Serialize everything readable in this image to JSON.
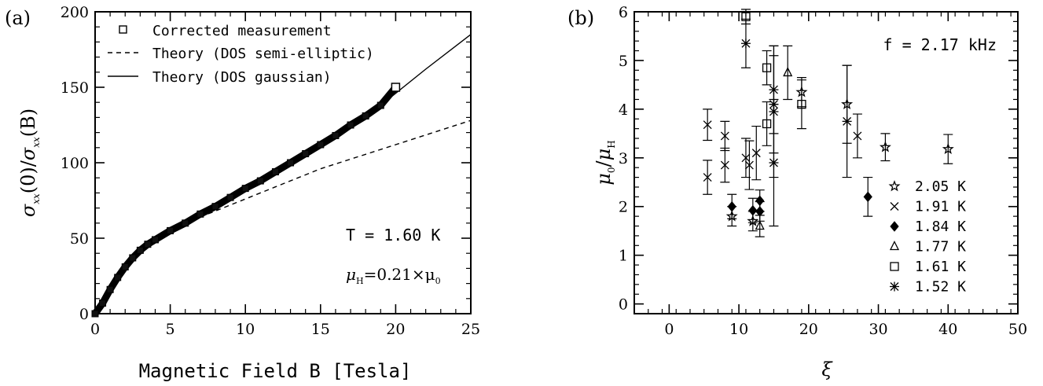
{
  "chart_data": [
    {
      "panel_label": "(a)",
      "type": "line",
      "xlabel": "Magnetic Field B [Tesla]",
      "ylabel": "σxx(0)/σxx(B)",
      "xlim": [
        0,
        25
      ],
      "ylim": [
        0,
        200
      ],
      "xticks": [
        "0",
        "5",
        "10",
        "15",
        "20",
        "25"
      ],
      "yticks": [
        "0",
        "50",
        "100",
        "150",
        "200"
      ],
      "legend_position": "top-left",
      "annotations": [
        "T = 1.60 K",
        "μH=0.21×μ0"
      ],
      "annotation_parts": {
        "temp": "T = 1.60 K",
        "mu_h": "μ",
        "mu_h_sub": "H",
        "mu_rest": "=0.21×μ",
        "mu_sub0": "0"
      },
      "series": [
        {
          "name": "Corrected measurement",
          "style": "open-square markers",
          "x": [
            0.0,
            0.5,
            1.0,
            1.5,
            2.0,
            2.5,
            3.0,
            3.5,
            4.0,
            5.0,
            6.0,
            7.0,
            8.0,
            9.0,
            10.0,
            11.0,
            12.0,
            13.0,
            14.0,
            15.0,
            16.0,
            17.0,
            18.0,
            19.0,
            20.0
          ],
          "y": [
            0,
            7,
            16,
            24,
            31,
            37,
            42,
            46,
            49,
            55,
            60,
            66,
            71,
            77,
            83,
            88,
            94,
            100,
            106,
            112,
            118,
            125,
            131,
            138,
            150
          ]
        },
        {
          "name": "Theory (DOS semi-elliptic)",
          "style": "dashed line",
          "x": [
            0.0,
            0.5,
            1.0,
            1.5,
            2.0,
            2.5,
            3.0,
            3.5,
            4.0,
            5.0,
            6.0,
            7.0,
            8.0,
            10.0,
            12.0,
            15.0,
            20.0,
            25.0
          ],
          "y": [
            0,
            7,
            16,
            24,
            31,
            37,
            42,
            46,
            49,
            55,
            60,
            64,
            68,
            76,
            84,
            96,
            112,
            128
          ]
        },
        {
          "name": "Theory (DOS gaussian)",
          "style": "solid line",
          "x": [
            0.0,
            0.5,
            1.0,
            1.5,
            2.0,
            2.5,
            3.0,
            3.5,
            4.0,
            5.0,
            6.0,
            7.0,
            8.0,
            9.0,
            10.0,
            11.0,
            12.0,
            13.0,
            14.0,
            15.0,
            16.0,
            17.0,
            18.0,
            19.0,
            20.0,
            22.0,
            25.0
          ],
          "y": [
            0,
            7,
            16,
            24,
            31,
            37,
            42,
            46,
            49,
            55,
            60,
            66,
            71,
            77,
            83,
            88,
            94,
            100,
            106,
            112,
            118,
            125,
            131,
            138,
            146,
            162,
            185
          ]
        }
      ]
    },
    {
      "panel_label": "(b)",
      "type": "scatter",
      "xlabel": "ξ",
      "ylabel": "μ0/μH",
      "ylabel_parts": {
        "a": "μ",
        "a_sub": "0",
        "slash": "/",
        "b": "μ",
        "b_sub": "H"
      },
      "xlim": [
        -5,
        50
      ],
      "ylim": [
        -0.2,
        6
      ],
      "xticks": [
        "0",
        "10",
        "20",
        "30",
        "40",
        "50"
      ],
      "yticks": [
        "0",
        "1",
        "2",
        "3",
        "4",
        "5",
        "6"
      ],
      "legend_position": "bottom-right",
      "annotations": [
        "f = 2.17 kHz"
      ],
      "series": [
        {
          "name": "2.05 K",
          "marker": "star-open",
          "points": [
            [
              9.0,
              1.8,
              0.2
            ],
            [
              12.0,
              1.7,
              0.2
            ],
            [
              19.0,
              4.35,
              0.3
            ],
            [
              25.5,
              4.1,
              0.8
            ],
            [
              31.0,
              3.22,
              0.28
            ],
            [
              40.0,
              3.18,
              0.3
            ]
          ]
        },
        {
          "name": "1.91 K",
          "marker": "x",
          "points": [
            [
              5.5,
              3.68,
              0.32
            ],
            [
              5.5,
              2.6,
              0.35
            ],
            [
              8.0,
              3.45,
              0.3
            ],
            [
              8.0,
              2.85,
              0.35
            ],
            [
              11.0,
              3.0,
              0.4
            ],
            [
              11.5,
              2.85,
              0.5
            ],
            [
              12.5,
              3.1,
              0.55
            ],
            [
              27.0,
              3.45,
              0.45
            ]
          ]
        },
        {
          "name": "1.84 K",
          "marker": "diamond-filled",
          "points": [
            [
              9.0,
              2.0,
              0.25
            ],
            [
              12.0,
              1.92,
              0.25
            ],
            [
              13.0,
              2.12,
              0.22
            ],
            [
              13.0,
              1.9,
              0.2
            ],
            [
              28.5,
              2.2,
              0.4
            ]
          ]
        },
        {
          "name": "1.77 K",
          "marker": "triangle-open",
          "points": [
            [
              13.0,
              1.6,
              0.22
            ],
            [
              17.0,
              4.75,
              0.55
            ]
          ]
        },
        {
          "name": "1.61 K",
          "marker": "square-open",
          "points": [
            [
              11.0,
              5.9,
              0.15
            ],
            [
              14.0,
              4.85,
              0.35
            ],
            [
              14.0,
              3.7,
              0.45
            ],
            [
              19.0,
              4.1,
              0.5
            ]
          ]
        },
        {
          "name": "1.52 K",
          "marker": "asterisk",
          "points": [
            [
              11.0,
              5.35,
              0.5
            ],
            [
              15.0,
              4.4,
              0.9
            ],
            [
              15.0,
              4.1,
              1.0
            ],
            [
              15.0,
              3.95,
              1.35
            ],
            [
              15.0,
              2.9,
              1.3
            ],
            [
              25.5,
              3.75,
              1.15
            ]
          ]
        }
      ]
    }
  ]
}
